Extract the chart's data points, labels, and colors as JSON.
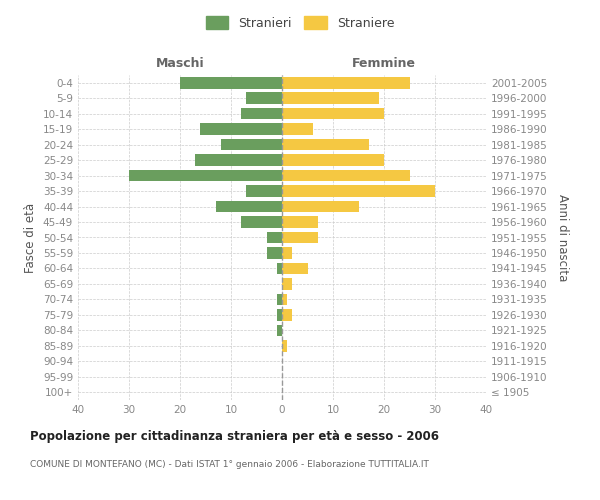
{
  "age_groups": [
    "100+",
    "95-99",
    "90-94",
    "85-89",
    "80-84",
    "75-79",
    "70-74",
    "65-69",
    "60-64",
    "55-59",
    "50-54",
    "45-49",
    "40-44",
    "35-39",
    "30-34",
    "25-29",
    "20-24",
    "15-19",
    "10-14",
    "5-9",
    "0-4"
  ],
  "birth_years": [
    "≤ 1905",
    "1906-1910",
    "1911-1915",
    "1916-1920",
    "1921-1925",
    "1926-1930",
    "1931-1935",
    "1936-1940",
    "1941-1945",
    "1946-1950",
    "1951-1955",
    "1956-1960",
    "1961-1965",
    "1966-1970",
    "1971-1975",
    "1976-1980",
    "1981-1985",
    "1986-1990",
    "1991-1995",
    "1996-2000",
    "2001-2005"
  ],
  "maschi": [
    0,
    0,
    0,
    0,
    1,
    1,
    1,
    0,
    1,
    3,
    3,
    8,
    13,
    7,
    30,
    17,
    12,
    16,
    8,
    7,
    20
  ],
  "femmine": [
    0,
    0,
    0,
    1,
    0,
    2,
    1,
    2,
    5,
    2,
    7,
    7,
    15,
    30,
    25,
    20,
    17,
    6,
    20,
    19,
    25
  ],
  "maschi_color": "#6a9e5e",
  "femmine_color": "#f5c842",
  "xlim": 40,
  "title": "Popolazione per cittadinanza straniera per età e sesso - 2006",
  "subtitle": "COMUNE DI MONTEFANO (MC) - Dati ISTAT 1° gennaio 2006 - Elaborazione TUTTITALIA.IT",
  "ylabel_left": "Fasce di età",
  "ylabel_right": "Anni di nascita",
  "maschi_label": "Maschi",
  "femmine_label": "Femmine",
  "legend_stranieri": "Stranieri",
  "legend_straniere": "Straniere",
  "bg_color": "#ffffff",
  "grid_color": "#cccccc",
  "tick_color": "#888888"
}
